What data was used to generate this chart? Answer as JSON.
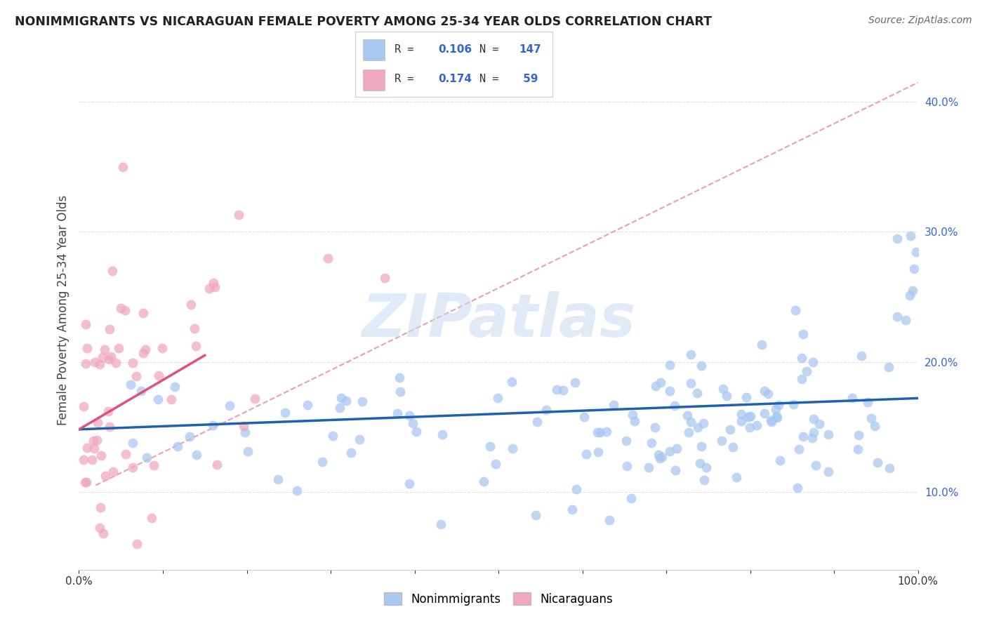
{
  "title": "NONIMMIGRANTS VS NICARAGUAN FEMALE POVERTY AMONG 25-34 YEAR OLDS CORRELATION CHART",
  "source": "Source: ZipAtlas.com",
  "ylabel": "Female Poverty Among 25-34 Year Olds",
  "xlim": [
    0,
    1.0
  ],
  "ylim": [
    0.04,
    0.44
  ],
  "yticks": [
    0.1,
    0.2,
    0.3,
    0.4
  ],
  "legend_R1": "0.106",
  "legend_N1": "147",
  "legend_R2": "0.174",
  "legend_N2": "59",
  "legend_label1": "Nonimmigrants",
  "legend_label2": "Nicaraguans",
  "color_blue": "#A8C8F0",
  "color_pink": "#F0A8BE",
  "color_blue_line": "#2060B0",
  "color_pink_line": "#E05080",
  "color_dash": "#E8A0B0",
  "title_color": "#222222",
  "rv_color": "#3366CC",
  "background_color": "#FFFFFF",
  "grid_color": "#E0E0E0",
  "watermark": "ZIPatlas",
  "watermark_color": "#DDDDDD",
  "blue_line_x0": 0.0,
  "blue_line_x1": 1.0,
  "blue_line_y0": 0.148,
  "blue_line_y1": 0.172,
  "pink_line_x0": 0.0,
  "pink_line_x1": 0.15,
  "pink_line_y0": 0.148,
  "pink_line_y1": 0.205,
  "dash_line_x0": 0.02,
  "dash_line_x1": 1.0,
  "dash_line_y0": 0.105,
  "dash_line_y1": 0.415
}
